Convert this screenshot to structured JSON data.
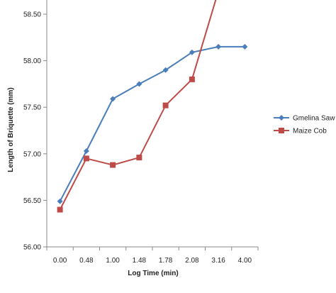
{
  "chart_data": {
    "type": "line",
    "categories": [
      "0.00",
      "0.48",
      "1.00",
      "1.48",
      "1.78",
      "2.08",
      "3.16",
      "4.00"
    ],
    "xlabel": "Log Time (min)",
    "ylabel": "Length of Briquette (mm)",
    "ylim": [
      56.0,
      58.5
    ],
    "yticks": [
      "56.00",
      "56.50",
      "57.00",
      "57.50",
      "58.00",
      "58.50"
    ],
    "grid": false,
    "legend_position": "right",
    "series": [
      {
        "name": "Gmelina Saw",
        "color": "#4a7ebb",
        "marker": "diamond",
        "values": [
          56.49,
          57.03,
          57.59,
          57.75,
          57.9,
          58.09,
          58.15,
          58.15
        ]
      },
      {
        "name": "Maize Cob",
        "color": "#be4b48",
        "marker": "square",
        "values": [
          56.4,
          56.95,
          56.88,
          56.96,
          57.52,
          57.8,
          58.75,
          null
        ]
      }
    ]
  }
}
